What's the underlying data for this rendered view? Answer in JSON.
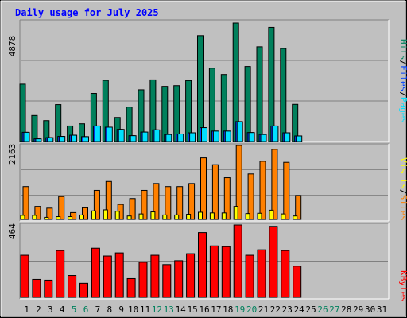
{
  "title": "Daily usage for July 2025",
  "labels": {
    "pages": "Pages",
    "files": "Files",
    "hits": "Hits",
    "sites": "Sites",
    "visits": "Visits",
    "kbytes": "KBytes",
    "separator": "/"
  },
  "colors": {
    "hits": "#00805c",
    "files": "#0040ff",
    "pages": "#00e0ff",
    "visits": "#ffff00",
    "sites": "#ff8000",
    "kbytes": "#ff0000",
    "title": "#0000ff",
    "weekend_day": "#00805c",
    "weekday": "#000000"
  },
  "chart_data": {
    "type": "bar",
    "title": "Daily usage for July 2025",
    "categories": [
      "1",
      "2",
      "3",
      "4",
      "5",
      "6",
      "7",
      "8",
      "9",
      "10",
      "11",
      "12",
      "13",
      "14",
      "15",
      "16",
      "17",
      "18",
      "19",
      "20",
      "21",
      "22",
      "23",
      "24",
      "25",
      "26",
      "27",
      "28",
      "29",
      "30",
      "31"
    ],
    "weekend_days": [
      "5",
      "6",
      "12",
      "13",
      "19",
      "20",
      "26",
      "27"
    ],
    "panels": [
      {
        "ymax": 4878,
        "ymax_label": "4878",
        "series": [
          {
            "name": "Hits",
            "values": [
              2360,
              1070,
              860,
              1520,
              640,
              730,
              1980,
              2520,
              990,
              1420,
              2130,
              2540,
              2270,
              2300,
              2510,
              4360,
              3020,
              2760,
              4878,
              3090,
              3900,
              4700,
              3830,
              1530,
              0,
              0,
              0,
              0,
              0,
              0,
              0
            ]
          },
          {
            "name": "Files",
            "values": [
              380,
              110,
              160,
              210,
              260,
              200,
              640,
              590,
              500,
              240,
              390,
              480,
              290,
              310,
              360,
              570,
              430,
              430,
              820,
              370,
              290,
              640,
              360,
              230,
              0,
              0,
              0,
              0,
              0,
              0,
              0
            ]
          },
          {
            "name": "Pages",
            "values": [
              380,
              110,
              160,
              210,
              260,
              200,
              640,
              590,
              500,
              240,
              390,
              480,
              290,
              310,
              360,
              570,
              430,
              430,
              820,
              370,
              290,
              640,
              360,
              230,
              0,
              0,
              0,
              0,
              0,
              0,
              0
            ]
          }
        ]
      },
      {
        "ymax": 2163,
        "ymax_label": "2163",
        "series": [
          {
            "name": "Sites",
            "values": [
              960,
              380,
              330,
              670,
              200,
              340,
              850,
              1110,
              440,
              610,
              850,
              1050,
              960,
              960,
              1050,
              1800,
              1600,
              1220,
              2163,
              1330,
              1700,
              2050,
              1670,
              700,
              0,
              0,
              0,
              0,
              0,
              0,
              0
            ]
          },
          {
            "name": "Visits",
            "values": [
              120,
              120,
              60,
              80,
              80,
              130,
              250,
              280,
              240,
              100,
              160,
              220,
              130,
              130,
              150,
              210,
              190,
              190,
              380,
              170,
              180,
              270,
              160,
              100,
              0,
              0,
              0,
              0,
              0,
              0,
              0
            ]
          }
        ]
      },
      {
        "ymax": 464,
        "ymax_label": "464",
        "series": [
          {
            "name": "KBytes",
            "values": [
              270,
              115,
              110,
              300,
              140,
              90,
              315,
              265,
              285,
              120,
              225,
              270,
              210,
              235,
              280,
              415,
              330,
              325,
              464,
              270,
              305,
              455,
              300,
              200,
              0,
              0,
              0,
              0,
              0,
              0,
              0
            ]
          }
        ]
      }
    ]
  }
}
